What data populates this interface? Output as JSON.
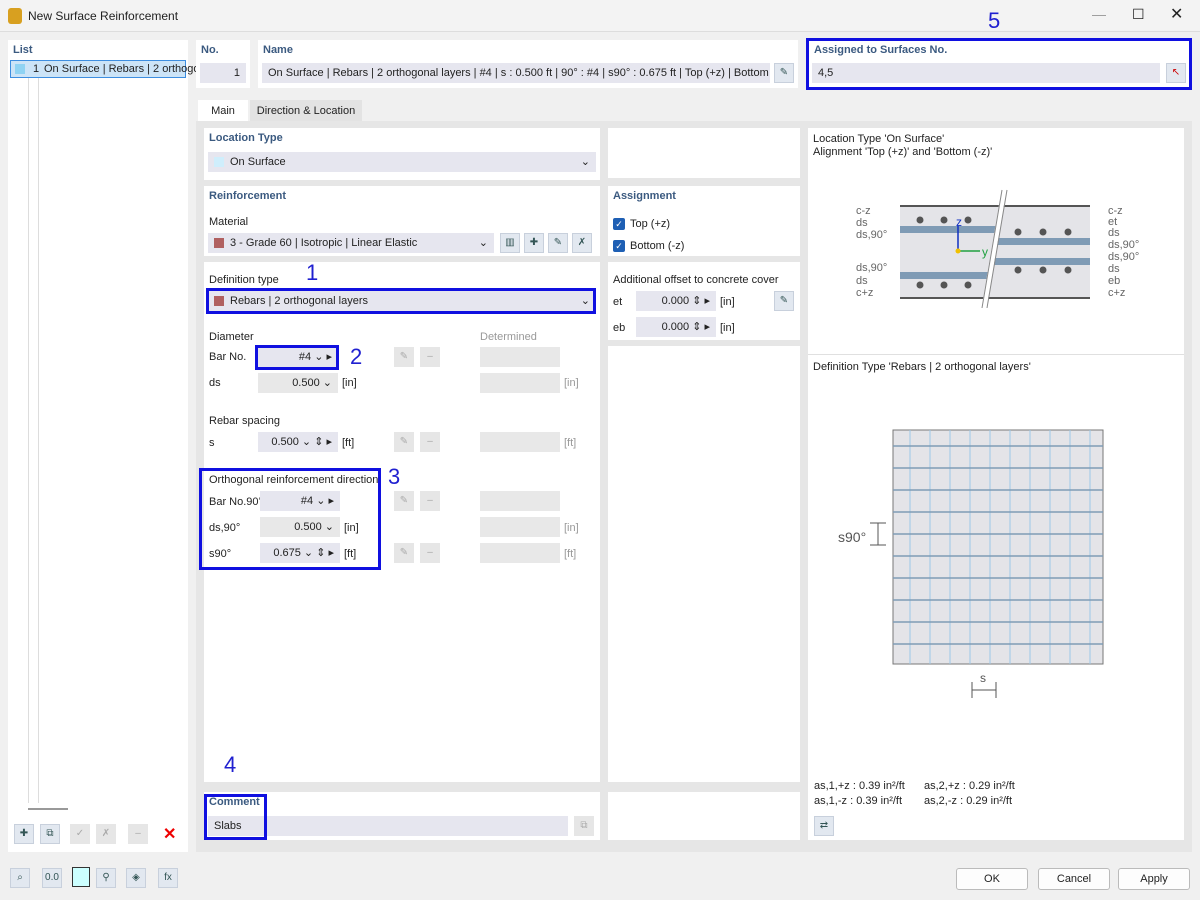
{
  "window": {
    "title": "New Surface Reinforcement"
  },
  "list": {
    "header": "List",
    "items": [
      {
        "no": "1",
        "label": "On Surface | Rebars | 2 orthogo"
      }
    ]
  },
  "no": {
    "label": "No.",
    "value": "1"
  },
  "name": {
    "label": "Name",
    "value": "On Surface | Rebars | 2 orthogonal layers | #4 | s : 0.500 ft | 90° : #4 | s90° : 0.675 ft | Top (+z) | Bottom (-z) | Slabs"
  },
  "assigned": {
    "label": "Assigned to Surfaces No.",
    "value": "4,5"
  },
  "tabs": [
    {
      "label": "Main",
      "active": true
    },
    {
      "label": "Direction & Location",
      "active": false
    }
  ],
  "location": {
    "header": "Location Type",
    "value": "On Surface",
    "color": "#cfeefc"
  },
  "reinforcement": {
    "header": "Reinforcement",
    "material_label": "Material",
    "material": "3 - Grade 60 | Isotropic | Linear Elastic",
    "material_color": "#b06060"
  },
  "definition": {
    "label": "Definition type",
    "value": "Rebars | 2 orthogonal layers",
    "color": "#b06060"
  },
  "diameter": {
    "header": "Diameter",
    "determined": "Determined",
    "bar_label": "Bar No.",
    "bar": "#4",
    "ds_label": "ds",
    "ds": "0.500",
    "ds_unit": "[in]"
  },
  "spacing": {
    "header": "Rebar spacing",
    "s_label": "s",
    "s": "0.500",
    "s_unit": "[ft]"
  },
  "orthogonal": {
    "header": "Orthogonal reinforcement direction",
    "bar_label": "Bar No.90°",
    "bar": "#4",
    "ds_label": "ds,90°",
    "ds": "0.500",
    "ds_unit": "[in]",
    "s_label": "s90°",
    "s": "0.675",
    "s_unit": "[ft]"
  },
  "assignment": {
    "header": "Assignment",
    "top": "Top (+z)",
    "bottom": "Bottom (-z)",
    "top_checked": true,
    "bottom_checked": true
  },
  "offset": {
    "header": "Additional offset to concrete cover",
    "et_label": "et",
    "et": "0.000",
    "eb_label": "eb",
    "eb": "0.000",
    "unit": "[in]"
  },
  "comment": {
    "label": "Comment",
    "value": "Slabs"
  },
  "preview1": {
    "line1": "Location Type 'On Surface'",
    "line2": "Alignment 'Top (+z)' and 'Bottom (-z)'",
    "left_labels": [
      "c-z",
      "ds",
      "ds,90°",
      "ds,90°",
      "ds",
      "c+z"
    ],
    "right_labels": [
      "c-z",
      "et",
      "ds",
      "ds,90°",
      "ds,90°",
      "ds",
      "eb",
      "c+z"
    ],
    "z": "z",
    "y": "y"
  },
  "preview2": {
    "title": "Definition Type 'Rebars | 2 orthogonal layers'",
    "s90": "s90°",
    "s": "s"
  },
  "areas": [
    {
      "label": "as,1,+z :",
      "value": "0.39 in²/ft"
    },
    {
      "label": "as,2,+z :",
      "value": "0.29 in²/ft"
    },
    {
      "label": "as,1,-z :",
      "value": "0.39 in²/ft"
    },
    {
      "label": "as,2,-z :",
      "value": "0.29 in²/ft"
    }
  ],
  "annotations": [
    "1",
    "2",
    "3",
    "4",
    "5"
  ],
  "footer": {
    "ok": "OK",
    "cancel": "Cancel",
    "apply": "Apply"
  },
  "accent": "#1010e0"
}
